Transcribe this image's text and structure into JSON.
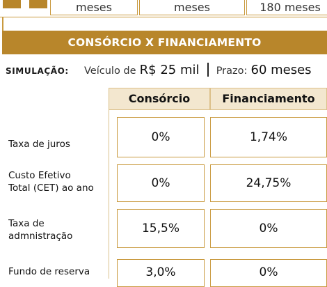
{
  "top_strip": {
    "cells": [
      "meses",
      "meses",
      "180 meses"
    ]
  },
  "section_title": "CONSÓRCIO X FINANCIAMENTO",
  "simulation": {
    "label": "SIMULAÇÃO:",
    "vehicle_prefix": "Veículo de",
    "vehicle_value": "R$ 25 mil",
    "term_prefix": "Prazo:",
    "term_value": "60 meses"
  },
  "table": {
    "columns": [
      "Consórcio",
      "Financiamento"
    ],
    "rows": [
      {
        "label": "Taxa de juros",
        "consorcio": "0%",
        "financiamento": "1,74%"
      },
      {
        "label": "Custo Efetivo\nTotal (CET) ao ano",
        "consorcio": "0%",
        "financiamento": "24,75%"
      },
      {
        "label": "Taxa de\nadmnistração",
        "consorcio": "15,5%",
        "financiamento": "0%"
      },
      {
        "label": "Fundo de reserva",
        "consorcio": "3,0%",
        "financiamento": "0%"
      }
    ]
  },
  "colors": {
    "gold": "#b8862b",
    "gold_border": "#c99a3f",
    "header_fill": "#f3e7cf"
  }
}
